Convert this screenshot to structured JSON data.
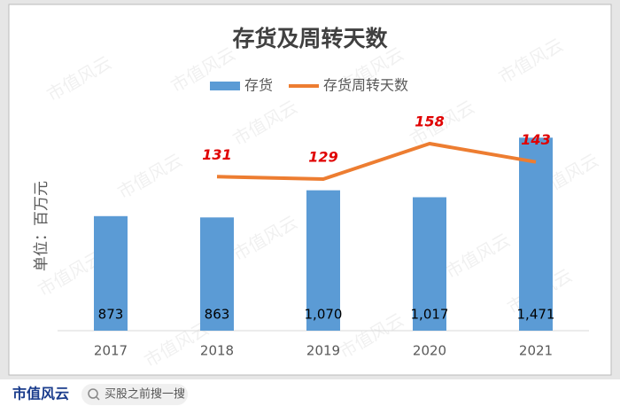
{
  "chart_data": {
    "type": "bar",
    "title": "存货及周转天数",
    "y_axis_label": "单位：百万元",
    "watermark": "市值风云",
    "categories": [
      "2017",
      "2018",
      "2019",
      "2020",
      "2021"
    ],
    "ylim": [
      0,
      1500
    ],
    "y2lim": [
      5,
      166
    ],
    "series": [
      {
        "name": "存货",
        "type": "bar",
        "color": "#5b9bd5",
        "values": [
          873,
          863,
          1070,
          1017,
          1471
        ],
        "value_labels": [
          "873",
          "863",
          "1,070",
          "1,017",
          "1,471"
        ]
      },
      {
        "name": "存货周转天数",
        "type": "line",
        "axis": "y2",
        "color": "#ed7d31",
        "label_color": "#e00000",
        "values": [
          null,
          131,
          129,
          158,
          143
        ]
      }
    ]
  },
  "footer": {
    "brand": "市值风云",
    "search": "买股之前搜一搜"
  }
}
